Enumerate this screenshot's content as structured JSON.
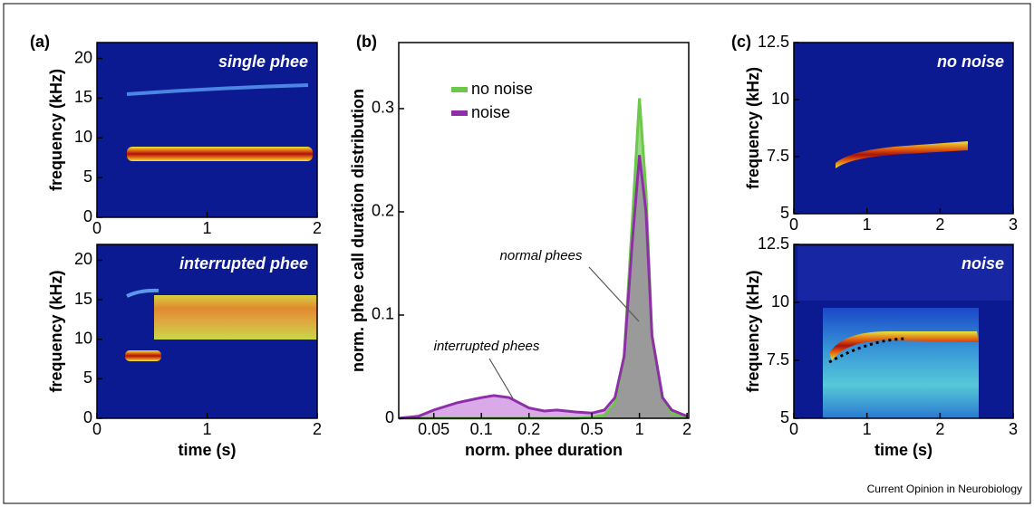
{
  "panel_labels": [
    "(a)",
    "(b)",
    "(c)"
  ],
  "credit": "Current Opinion in Neurobiology",
  "chart_data": [
    {
      "type": "spectrogram",
      "corner_label": "single phee",
      "ylabel": "frequency (kHz)",
      "xlim": [
        0,
        2
      ],
      "xticks": [
        0,
        1,
        2
      ],
      "ylim": [
        0,
        22
      ],
      "yticks": [
        0,
        5,
        10,
        15,
        20
      ]
    },
    {
      "type": "spectrogram",
      "corner_label": "interrupted phee",
      "ylabel": "frequency (kHz)",
      "xlabel": "time (s)",
      "xlim": [
        0,
        2
      ],
      "xticks": [
        0,
        1,
        2
      ],
      "ylim": [
        0,
        22
      ],
      "yticks": [
        0,
        5,
        10,
        15,
        20
      ]
    },
    {
      "type": "area",
      "xlabel": "norm. phee duration",
      "ylabel": "norm. phee call duration distribution",
      "log_x": true,
      "legend": "upper left",
      "x": [
        0.03,
        0.04,
        0.05,
        0.07,
        0.1,
        0.12,
        0.15,
        0.2,
        0.25,
        0.3,
        0.4,
        0.5,
        0.6,
        0.7,
        0.8,
        0.9,
        1.0,
        1.1,
        1.2,
        1.4,
        1.6,
        2.0
      ],
      "series": [
        {
          "name": "no noise",
          "color": "#6cc84a",
          "fill": "#9ed98a",
          "values": [
            0,
            0,
            0,
            0,
            0,
            0,
            0,
            0,
            0,
            0,
            0,
            0.001,
            0.003,
            0.015,
            0.06,
            0.19,
            0.31,
            0.22,
            0.08,
            0.02,
            0.005,
            0.001
          ]
        },
        {
          "name": "noise",
          "color": "#8e2fa8",
          "fill": "#d9a9e8",
          "values": [
            0,
            0.002,
            0.008,
            0.015,
            0.02,
            0.022,
            0.02,
            0.01,
            0.007,
            0.008,
            0.006,
            0.005,
            0.008,
            0.02,
            0.06,
            0.17,
            0.255,
            0.2,
            0.08,
            0.02,
            0.008,
            0.002
          ]
        }
      ],
      "overlap_fill": "#9a9a9a",
      "annotations": [
        "normal phees",
        "interrupted phees"
      ],
      "xlim": [
        0.03,
        2.05
      ],
      "xticks": [
        0.05,
        0.1,
        0.2,
        0.5,
        1,
        2
      ],
      "ylim": [
        0,
        0.364
      ],
      "yticks": [
        0,
        0.1,
        0.2,
        0.3
      ]
    },
    {
      "type": "spectrogram",
      "corner_label": "no noise",
      "ylabel": "frequency (kHz)",
      "xlim": [
        0,
        3
      ],
      "xticks": [
        0,
        1,
        2,
        3
      ],
      "ylim": [
        5,
        12.5
      ],
      "yticks": [
        5,
        7.5,
        10,
        12.5
      ]
    },
    {
      "type": "spectrogram",
      "corner_label": "noise",
      "ylabel": "frequency (kHz)",
      "xlabel": "time (s)",
      "xlim": [
        0,
        3
      ],
      "xticks": [
        0,
        1,
        2,
        3
      ],
      "ylim": [
        5,
        12.5
      ],
      "yticks": [
        5,
        7.5,
        10,
        12.5
      ]
    }
  ]
}
